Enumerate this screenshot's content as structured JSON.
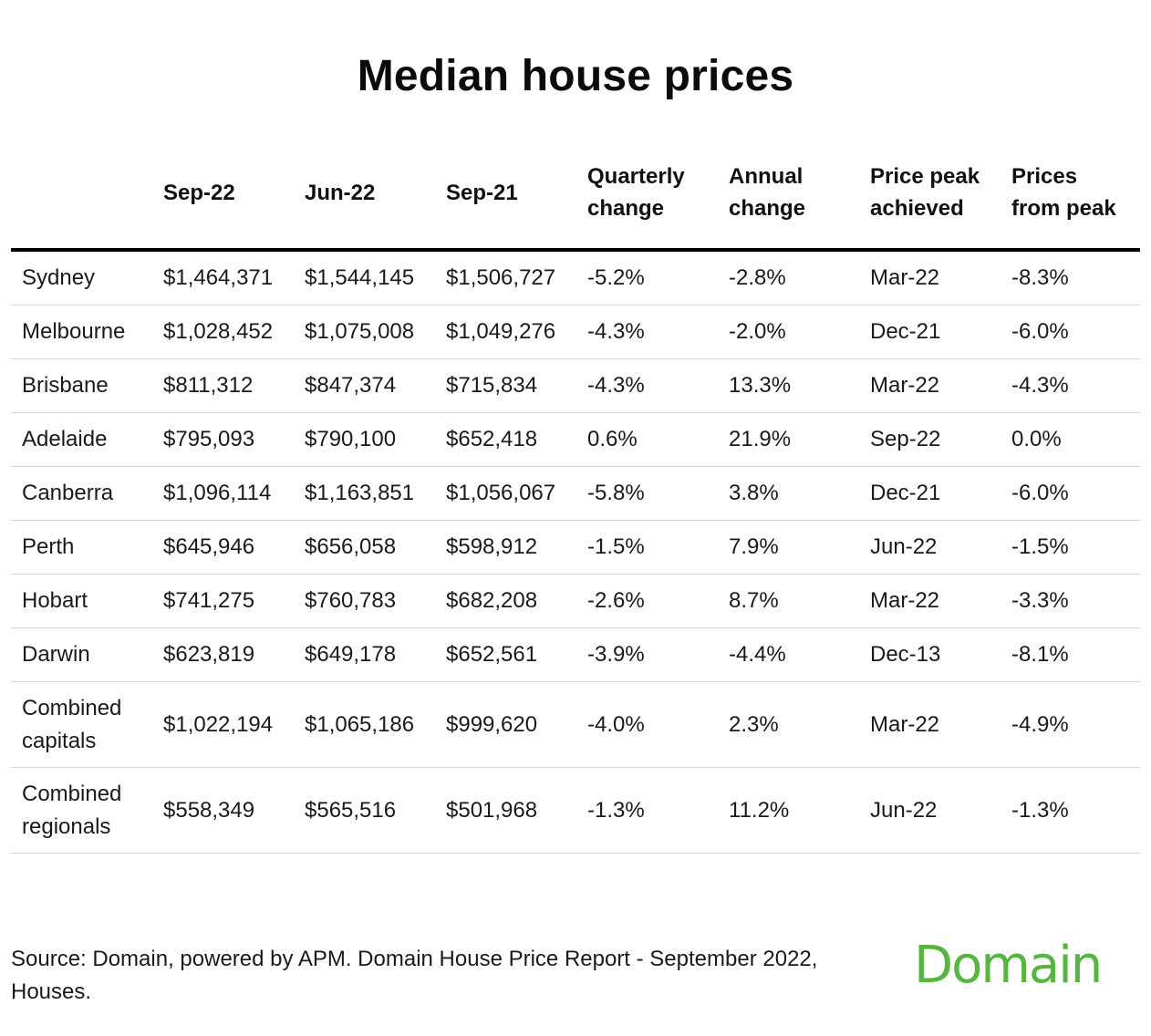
{
  "chart_data": {
    "type": "table",
    "title": "Median house prices",
    "columns": [
      "",
      "Sep-22",
      "Jun-22",
      "Sep-21",
      "Quarterly change",
      "Annual change",
      "Price peak achieved",
      "Prices from peak"
    ],
    "rows": [
      [
        "Sydney",
        "$1,464,371",
        "$1,544,145",
        "$1,506,727",
        "-5.2%",
        "-2.8%",
        "Mar-22",
        "-8.3%"
      ],
      [
        "Melbourne",
        "$1,028,452",
        "$1,075,008",
        "$1,049,276",
        "-4.3%",
        "-2.0%",
        "Dec-21",
        "-6.0%"
      ],
      [
        "Brisbane",
        "$811,312",
        "$847,374",
        "$715,834",
        "-4.3%",
        "13.3%",
        "Mar-22",
        "-4.3%"
      ],
      [
        "Adelaide",
        "$795,093",
        "$790,100",
        "$652,418",
        "0.6%",
        "21.9%",
        "Sep-22",
        "0.0%"
      ],
      [
        "Canberra",
        "$1,096,114",
        "$1,163,851",
        "$1,056,067",
        "-5.8%",
        "3.8%",
        "Dec-21",
        "-6.0%"
      ],
      [
        "Perth",
        "$645,946",
        "$656,058",
        "$598,912",
        "-1.5%",
        "7.9%",
        "Jun-22",
        "-1.5%"
      ],
      [
        "Hobart",
        "$741,275",
        "$760,783",
        "$682,208",
        "-2.6%",
        "8.7%",
        "Mar-22",
        "-3.3%"
      ],
      [
        "Darwin",
        "$623,819",
        "$649,178",
        "$652,561",
        "-3.9%",
        "-4.4%",
        "Dec-13",
        "-8.1%"
      ],
      [
        "Combined capitals",
        "$1,022,194",
        "$1,065,186",
        "$999,620",
        "-4.0%",
        "2.3%",
        "Mar-22",
        "-4.9%"
      ],
      [
        "Combined regionals",
        "$558,349",
        "$565,516",
        "$501,968",
        "-1.3%",
        "11.2%",
        "Jun-22",
        "-1.3%"
      ]
    ]
  },
  "footer": {
    "source": "Source: Domain, powered by APM. Domain House Price Report - September 2022, Houses."
  },
  "logo": {
    "text": "Domain",
    "color": "#58b544"
  }
}
